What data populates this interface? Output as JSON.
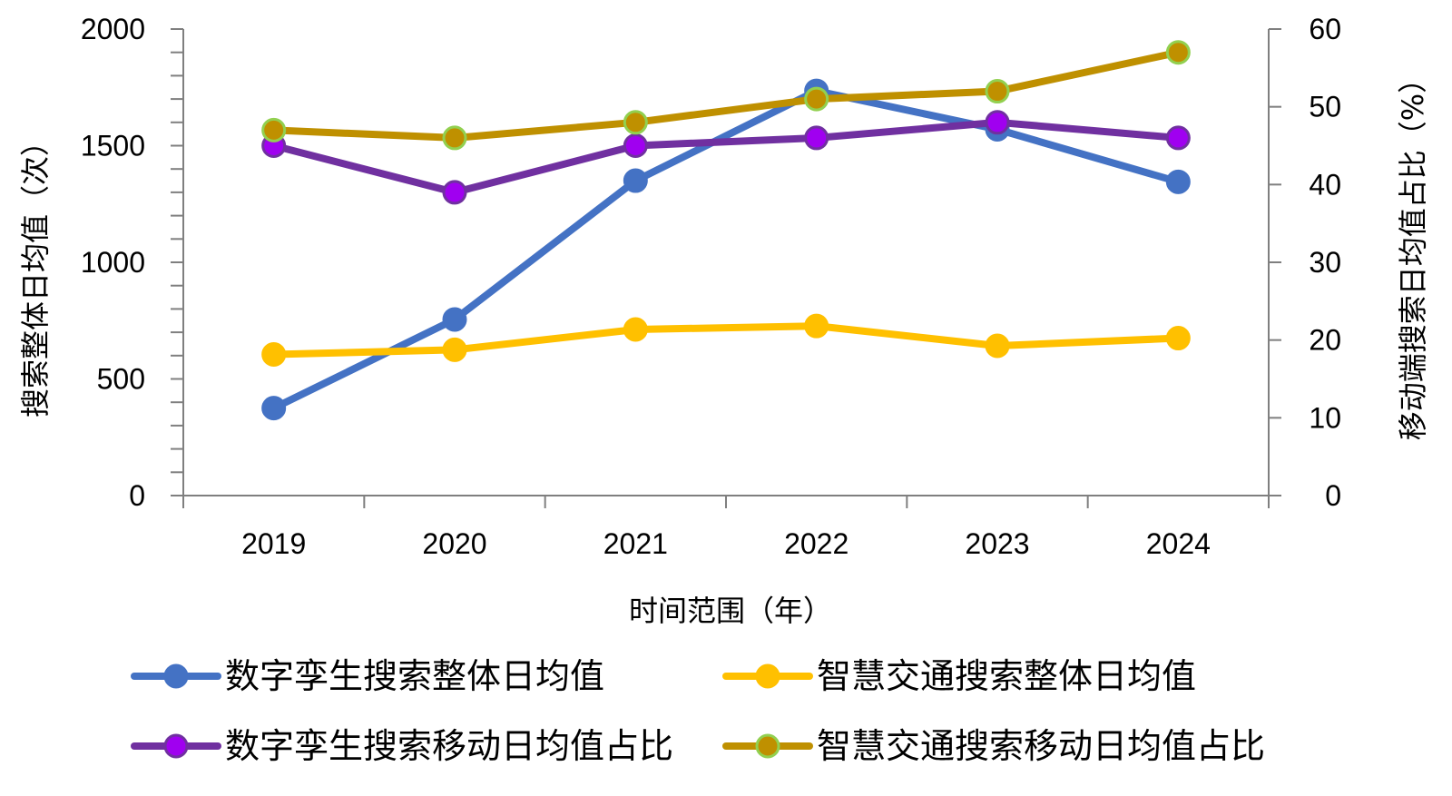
{
  "chart_data": {
    "type": "line",
    "categories": [
      "2019",
      "2020",
      "2021",
      "2022",
      "2023",
      "2024"
    ],
    "x_label": "时间范围（年）",
    "y_label_left": "搜索整体日均值（次）",
    "y_label_right": "移动端搜索日均值占比（%）",
    "y_left": {
      "range": [
        0,
        2000
      ],
      "ticks": [
        0,
        500,
        1000,
        1500,
        2000
      ],
      "minor_step": 100
    },
    "y_right": {
      "range": [
        0,
        60
      ],
      "ticks": [
        0,
        10,
        20,
        30,
        40,
        50,
        60
      ]
    },
    "grid": false,
    "legend_position": "bottom",
    "series": [
      {
        "name": "数字孪生搜索整体日均值",
        "axis": "left",
        "color": "#4472C4",
        "marker_fill": "#4472C4",
        "marker_edge": "#4472C4",
        "values": [
          375,
          755,
          1350,
          1735,
          1570,
          1345
        ]
      },
      {
        "name": "智慧交通搜索整体日均值",
        "axis": "left",
        "color": "#FFC000",
        "marker_fill": "#FFC000",
        "marker_edge": "#FFC000",
        "values": [
          605,
          625,
          712,
          727,
          642,
          675
        ]
      },
      {
        "name": "数字孪生搜索移动日均值占比",
        "axis": "right",
        "color": "#7030A0",
        "marker_fill": "#A000F0",
        "marker_edge": "#7030A0",
        "values": [
          45,
          39,
          45,
          46,
          48,
          46
        ]
      },
      {
        "name": "智慧交通搜索移动日均值占比",
        "axis": "right",
        "color": "#BF9000",
        "marker_fill": "#BF9000",
        "marker_edge": "#92D050",
        "values": [
          47,
          46,
          48,
          51,
          52,
          57
        ]
      }
    ]
  }
}
